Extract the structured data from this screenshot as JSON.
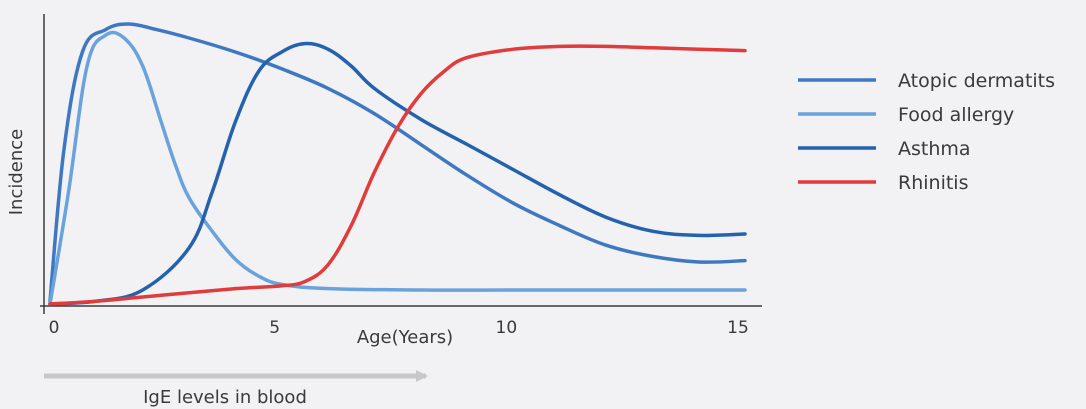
{
  "chart_data": {
    "type": "line",
    "title": "",
    "xlabel": "Age(Years)",
    "ylabel": "Incidence",
    "xlim": [
      0,
      15.5
    ],
    "ylim": [
      0,
      1
    ],
    "x_ticks": [
      0,
      5,
      10,
      15
    ],
    "x_tick_labels": [
      "0",
      "5",
      "10",
      "15"
    ],
    "grid": false,
    "legend_position": "right",
    "footnote_arrow_label": "IgE levels in blood",
    "series": [
      {
        "name": "Atopic dermatits",
        "color": "#3f78c2",
        "x": [
          0,
          0.3,
          0.7,
          1.2,
          1.7,
          2.3,
          3,
          4,
          5,
          6,
          7,
          8,
          9,
          10,
          11,
          12,
          13,
          14,
          15
        ],
        "y": [
          0.01,
          0.55,
          0.9,
          0.98,
          1.0,
          0.98,
          0.95,
          0.9,
          0.84,
          0.77,
          0.68,
          0.57,
          0.46,
          0.36,
          0.28,
          0.21,
          0.17,
          0.15,
          0.155
        ]
      },
      {
        "name": "Food allergy",
        "color": "#6aa3dc",
        "x": [
          0,
          0.4,
          0.8,
          1.2,
          1.6,
          2.0,
          2.4,
          2.7,
          3.0,
          3.5,
          4.0,
          4.5,
          5.0,
          6.0,
          8.0,
          10.0,
          12.0,
          15.0
        ],
        "y": [
          0.0,
          0.4,
          0.85,
          0.96,
          0.95,
          0.85,
          0.65,
          0.5,
          0.38,
          0.26,
          0.16,
          0.1,
          0.07,
          0.055,
          0.05,
          0.05,
          0.05,
          0.05
        ]
      },
      {
        "name": "Asthma",
        "color": "#2462ad",
        "x": [
          0,
          1,
          2,
          3,
          3.5,
          4,
          4.5,
          5,
          5.5,
          6,
          6.5,
          7,
          8,
          9,
          10,
          11,
          12,
          13,
          14,
          15
        ],
        "y": [
          0.0,
          0.01,
          0.05,
          0.2,
          0.4,
          0.65,
          0.83,
          0.9,
          0.93,
          0.91,
          0.85,
          0.77,
          0.66,
          0.57,
          0.48,
          0.39,
          0.31,
          0.26,
          0.245,
          0.25
        ]
      },
      {
        "name": "Rhinitis",
        "color": "#e03c3c",
        "x": [
          0,
          1,
          2,
          3,
          4,
          4.5,
          5,
          5.5,
          6,
          6.5,
          7,
          7.5,
          8,
          8.5,
          9,
          10,
          11,
          12,
          13,
          14,
          15
        ],
        "y": [
          0.0,
          0.01,
          0.025,
          0.04,
          0.055,
          0.06,
          0.065,
          0.08,
          0.14,
          0.28,
          0.47,
          0.63,
          0.75,
          0.83,
          0.88,
          0.91,
          0.92,
          0.92,
          0.915,
          0.91,
          0.905
        ]
      }
    ]
  }
}
